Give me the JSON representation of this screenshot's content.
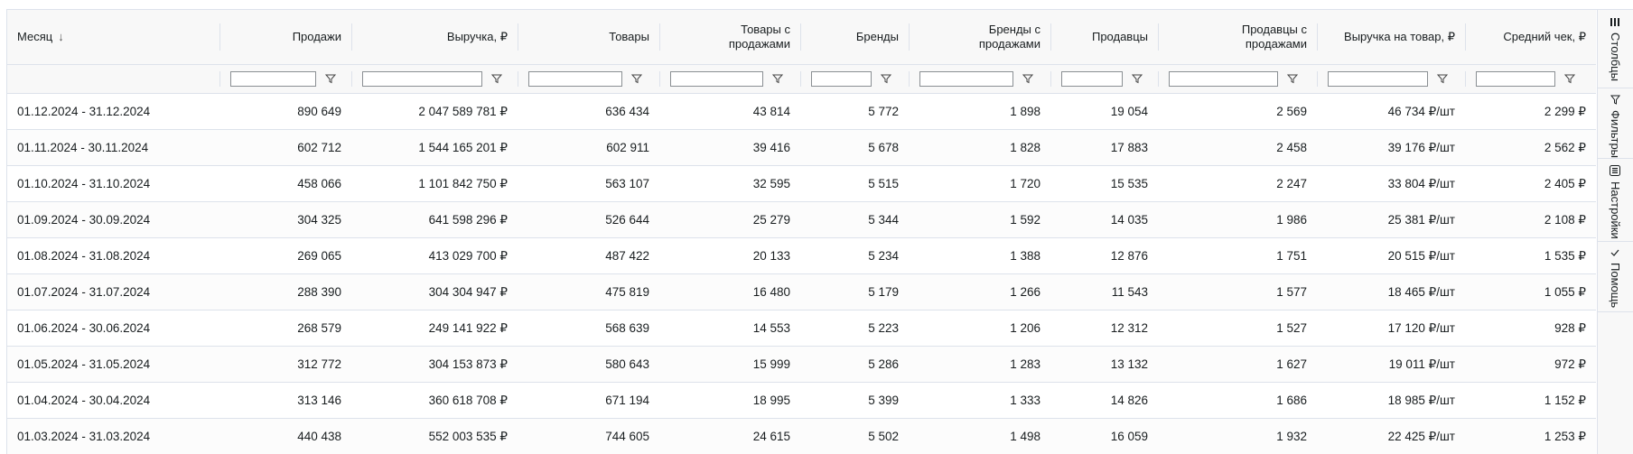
{
  "columns": [
    {
      "label": "Месяц",
      "sort": "↓"
    },
    {
      "label": "Продажи"
    },
    {
      "label": "Выручка, ₽"
    },
    {
      "label": "Товары"
    },
    {
      "label": "Товары с продажами"
    },
    {
      "label": "Бренды"
    },
    {
      "label": "Бренды с продажами"
    },
    {
      "label": "Продавцы"
    },
    {
      "label": "Продавцы с продажами"
    },
    {
      "label": "Выручка на товар, ₽"
    },
    {
      "label": "Средний чек, ₽"
    }
  ],
  "rows": [
    [
      "01.12.2024 - 31.12.2024",
      "890 649",
      "2 047 589 781 ₽",
      "636 434",
      "43 814",
      "5 772",
      "1 898",
      "19 054",
      "2 569",
      "46 734 ₽/шт",
      "2 299 ₽"
    ],
    [
      "01.11.2024 - 30.11.2024",
      "602 712",
      "1 544 165 201 ₽",
      "602 911",
      "39 416",
      "5 678",
      "1 828",
      "17 883",
      "2 458",
      "39 176 ₽/шт",
      "2 562 ₽"
    ],
    [
      "01.10.2024 - 31.10.2024",
      "458 066",
      "1 101 842 750 ₽",
      "563 107",
      "32 595",
      "5 515",
      "1 720",
      "15 535",
      "2 247",
      "33 804 ₽/шт",
      "2 405 ₽"
    ],
    [
      "01.09.2024 - 30.09.2024",
      "304 325",
      "641 598 296 ₽",
      "526 644",
      "25 279",
      "5 344",
      "1 592",
      "14 035",
      "1 986",
      "25 381 ₽/шт",
      "2 108 ₽"
    ],
    [
      "01.08.2024 - 31.08.2024",
      "269 065",
      "413 029 700 ₽",
      "487 422",
      "20 133",
      "5 234",
      "1 388",
      "12 876",
      "1 751",
      "20 515 ₽/шт",
      "1 535 ₽"
    ],
    [
      "01.07.2024 - 31.07.2024",
      "288 390",
      "304 304 947 ₽",
      "475 819",
      "16 480",
      "5 179",
      "1 266",
      "11 543",
      "1 577",
      "18 465 ₽/шт",
      "1 055 ₽"
    ],
    [
      "01.06.2024 - 30.06.2024",
      "268 579",
      "249 141 922 ₽",
      "568 639",
      "14 553",
      "5 223",
      "1 206",
      "12 312",
      "1 527",
      "17 120 ₽/шт",
      "928 ₽"
    ],
    [
      "01.05.2024 - 31.05.2024",
      "312 772",
      "304 153 873 ₽",
      "580 643",
      "15 999",
      "5 286",
      "1 283",
      "13 132",
      "1 627",
      "19 011 ₽/шт",
      "972 ₽"
    ],
    [
      "01.04.2024 - 30.04.2024",
      "313 146",
      "360 618 708 ₽",
      "671 194",
      "18 995",
      "5 399",
      "1 333",
      "14 826",
      "1 686",
      "18 985 ₽/шт",
      "1 152 ₽"
    ],
    [
      "01.03.2024 - 31.03.2024",
      "440 438",
      "552 003 535 ₽",
      "744 605",
      "24 615",
      "5 502",
      "1 498",
      "16 059",
      "1 932",
      "22 425 ₽/шт",
      "1 253 ₽"
    ]
  ],
  "sidebar": {
    "columns": {
      "label": "Столбцы",
      "icon": "columns-icon"
    },
    "filters": {
      "label": "Фильтры",
      "icon": "filter-icon"
    },
    "settings": {
      "label": "Настройки",
      "icon": "settings-icon"
    },
    "help": {
      "label": "Помощь",
      "icon": "check-icon"
    }
  },
  "colors": {
    "border": "#dde2eb",
    "header_bg": "#f8f8f8",
    "text": "#181d1f"
  }
}
